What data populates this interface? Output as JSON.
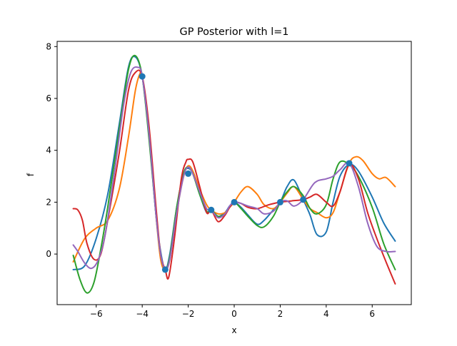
{
  "chart_data": {
    "type": "line",
    "title": "GP Posterior with l=1",
    "xlabel": "x",
    "ylabel": "f",
    "xlim": [
      -7.7,
      7.7
    ],
    "ylim": [
      -1.95,
      8.2
    ],
    "x_ticks": [
      -6,
      -4,
      -2,
      0,
      2,
      4,
      6
    ],
    "x_tick_labels": [
      "−6",
      "−4",
      "−2",
      "0",
      "2",
      "4",
      "6"
    ],
    "y_ticks": [
      0,
      2,
      4,
      6,
      8
    ],
    "y_tick_labels": [
      "0",
      "2",
      "4",
      "6",
      "8"
    ],
    "grid": false,
    "observations": {
      "color": "#1f77b4",
      "x": [
        -4,
        -3,
        -2,
        -1,
        0,
        2,
        3,
        5
      ],
      "y": [
        6.85,
        -0.6,
        3.1,
        1.7,
        2.0,
        2.0,
        2.1,
        3.5
      ]
    },
    "series": [
      {
        "color": "#1f77b4",
        "x": [
          -7,
          -6.5,
          -6,
          -5.5,
          -5,
          -4.6,
          -4.3,
          -4,
          -3.7,
          -3.4,
          -3.2,
          -3,
          -2.8,
          -2.5,
          -2.2,
          -2,
          -1.8,
          -1.5,
          -1.2,
          -1,
          -0.7,
          -0.4,
          -0.2,
          0,
          0.3,
          0.6,
          1,
          1.3,
          1.7,
          2,
          2.3,
          2.6,
          3,
          3.3,
          3.6,
          4,
          4.3,
          4.6,
          5,
          5.4,
          6,
          6.5,
          7
        ],
        "y": [
          -0.6,
          -0.45,
          0.6,
          2.3,
          5.0,
          7.2,
          7.6,
          6.85,
          4.5,
          1.5,
          0.1,
          -0.6,
          0.0,
          1.8,
          3.1,
          3.3,
          3.1,
          2.3,
          1.6,
          1.7,
          1.45,
          1.6,
          1.85,
          2.0,
          1.8,
          1.5,
          1.15,
          1.3,
          1.7,
          2.0,
          2.6,
          2.85,
          2.1,
          1.5,
          0.75,
          0.85,
          2.0,
          3.0,
          3.45,
          3.2,
          2.2,
          1.2,
          0.5
        ]
      },
      {
        "color": "#ff7f0e",
        "x": [
          -7,
          -6.5,
          -6,
          -5.5,
          -5,
          -4.6,
          -4.3,
          -4.1,
          -4,
          -3.7,
          -3.4,
          -3.2,
          -3,
          -2.8,
          -2.5,
          -2.2,
          -2,
          -1.8,
          -1.5,
          -1.2,
          -1,
          -0.7,
          -0.4,
          -0.2,
          0,
          0.3,
          0.6,
          1,
          1.3,
          1.7,
          2,
          2.3,
          2.6,
          3,
          3.3,
          3.6,
          4,
          4.3,
          4.6,
          5,
          5.3,
          5.6,
          6,
          6.3,
          6.6,
          7
        ],
        "y": [
          -0.3,
          0.6,
          1.0,
          1.3,
          2.5,
          4.5,
          6.3,
          6.95,
          6.85,
          4.8,
          1.5,
          -0.2,
          -0.6,
          -0.2,
          1.6,
          3.0,
          3.4,
          3.2,
          2.5,
          1.9,
          1.7,
          1.55,
          1.6,
          1.8,
          2.0,
          2.4,
          2.6,
          2.3,
          1.9,
          1.75,
          2.0,
          2.35,
          2.6,
          2.1,
          1.75,
          1.6,
          1.4,
          1.6,
          2.4,
          3.5,
          3.75,
          3.6,
          3.1,
          2.9,
          2.95,
          2.6
        ]
      },
      {
        "color": "#2ca02c",
        "x": [
          -7,
          -6.7,
          -6.4,
          -6.1,
          -5.8,
          -5.5,
          -5,
          -4.6,
          -4.3,
          -4,
          -3.7,
          -3.4,
          -3.2,
          -3,
          -2.8,
          -2.5,
          -2.2,
          -2,
          -1.8,
          -1.5,
          -1.2,
          -1,
          -0.7,
          -0.4,
          -0.2,
          0,
          0.3,
          0.6,
          1,
          1.3,
          1.7,
          2,
          2.3,
          2.6,
          3,
          3.3,
          3.6,
          4,
          4.3,
          4.6,
          5,
          5.4,
          6,
          6.5,
          7
        ],
        "y": [
          -0.05,
          -1.0,
          -1.5,
          -1.1,
          0.2,
          1.8,
          4.8,
          7.1,
          7.65,
          6.85,
          4.4,
          1.5,
          0.0,
          -0.6,
          -0.1,
          1.8,
          3.1,
          3.35,
          3.1,
          2.3,
          1.65,
          1.7,
          1.45,
          1.55,
          1.8,
          2.0,
          1.75,
          1.45,
          1.1,
          1.05,
          1.45,
          2.0,
          2.4,
          2.6,
          2.25,
          1.75,
          1.55,
          1.9,
          2.9,
          3.55,
          3.45,
          3.0,
          1.8,
          0.4,
          -0.6
        ]
      },
      {
        "color": "#d62728",
        "x": [
          -7,
          -6.8,
          -6.6,
          -6.4,
          -6.1,
          -5.8,
          -5.5,
          -5,
          -4.6,
          -4.3,
          -4,
          -3.7,
          -3.4,
          -3.2,
          -3,
          -2.85,
          -2.6,
          -2.3,
          -2.1,
          -2,
          -1.8,
          -1.5,
          -1.2,
          -1,
          -0.7,
          -0.4,
          -0.2,
          0,
          0.3,
          0.6,
          1,
          1.5,
          2,
          2.5,
          3,
          3.3,
          3.6,
          4,
          4.3,
          4.6,
          5,
          5.4,
          5.8,
          6.2,
          6.6,
          7
        ],
        "y": [
          1.75,
          1.7,
          1.3,
          0.4,
          -0.2,
          0.0,
          1.3,
          3.9,
          6.3,
          7.0,
          6.85,
          4.9,
          1.8,
          0.0,
          -0.6,
          -0.9,
          0.6,
          2.9,
          3.55,
          3.65,
          3.55,
          2.6,
          1.6,
          1.7,
          1.25,
          1.5,
          1.8,
          2.0,
          1.95,
          1.8,
          1.75,
          1.9,
          2.0,
          2.05,
          2.1,
          2.2,
          2.3,
          2.0,
          1.85,
          2.4,
          3.45,
          2.9,
          1.6,
          0.6,
          -0.3,
          -1.15
        ]
      },
      {
        "color": "#9467bd",
        "x": [
          -7,
          -6.8,
          -6.5,
          -6.2,
          -5.9,
          -5.6,
          -5.2,
          -4.8,
          -4.5,
          -4.2,
          -4,
          -3.7,
          -3.4,
          -3.2,
          -3,
          -2.8,
          -2.5,
          -2.2,
          -2,
          -1.8,
          -1.5,
          -1.2,
          -1,
          -0.7,
          -0.4,
          -0.2,
          0,
          0.3,
          0.6,
          1,
          1.3,
          1.7,
          2,
          2.3,
          2.6,
          3,
          3.5,
          4,
          4.3,
          4.6,
          5,
          5.4,
          5.8,
          6.2,
          6.6,
          7
        ],
        "y": [
          0.35,
          0.1,
          -0.35,
          -0.55,
          -0.2,
          0.8,
          3.2,
          5.8,
          7.0,
          7.2,
          6.85,
          4.6,
          1.5,
          0.0,
          -0.6,
          -0.2,
          1.6,
          3.0,
          3.35,
          3.1,
          2.4,
          1.75,
          1.7,
          1.4,
          1.55,
          1.85,
          2.0,
          1.95,
          1.85,
          1.75,
          1.55,
          1.65,
          2.0,
          2.05,
          1.85,
          2.1,
          2.75,
          2.9,
          3.0,
          3.25,
          3.5,
          2.6,
          1.2,
          0.3,
          0.1,
          0.1
        ]
      }
    ]
  }
}
